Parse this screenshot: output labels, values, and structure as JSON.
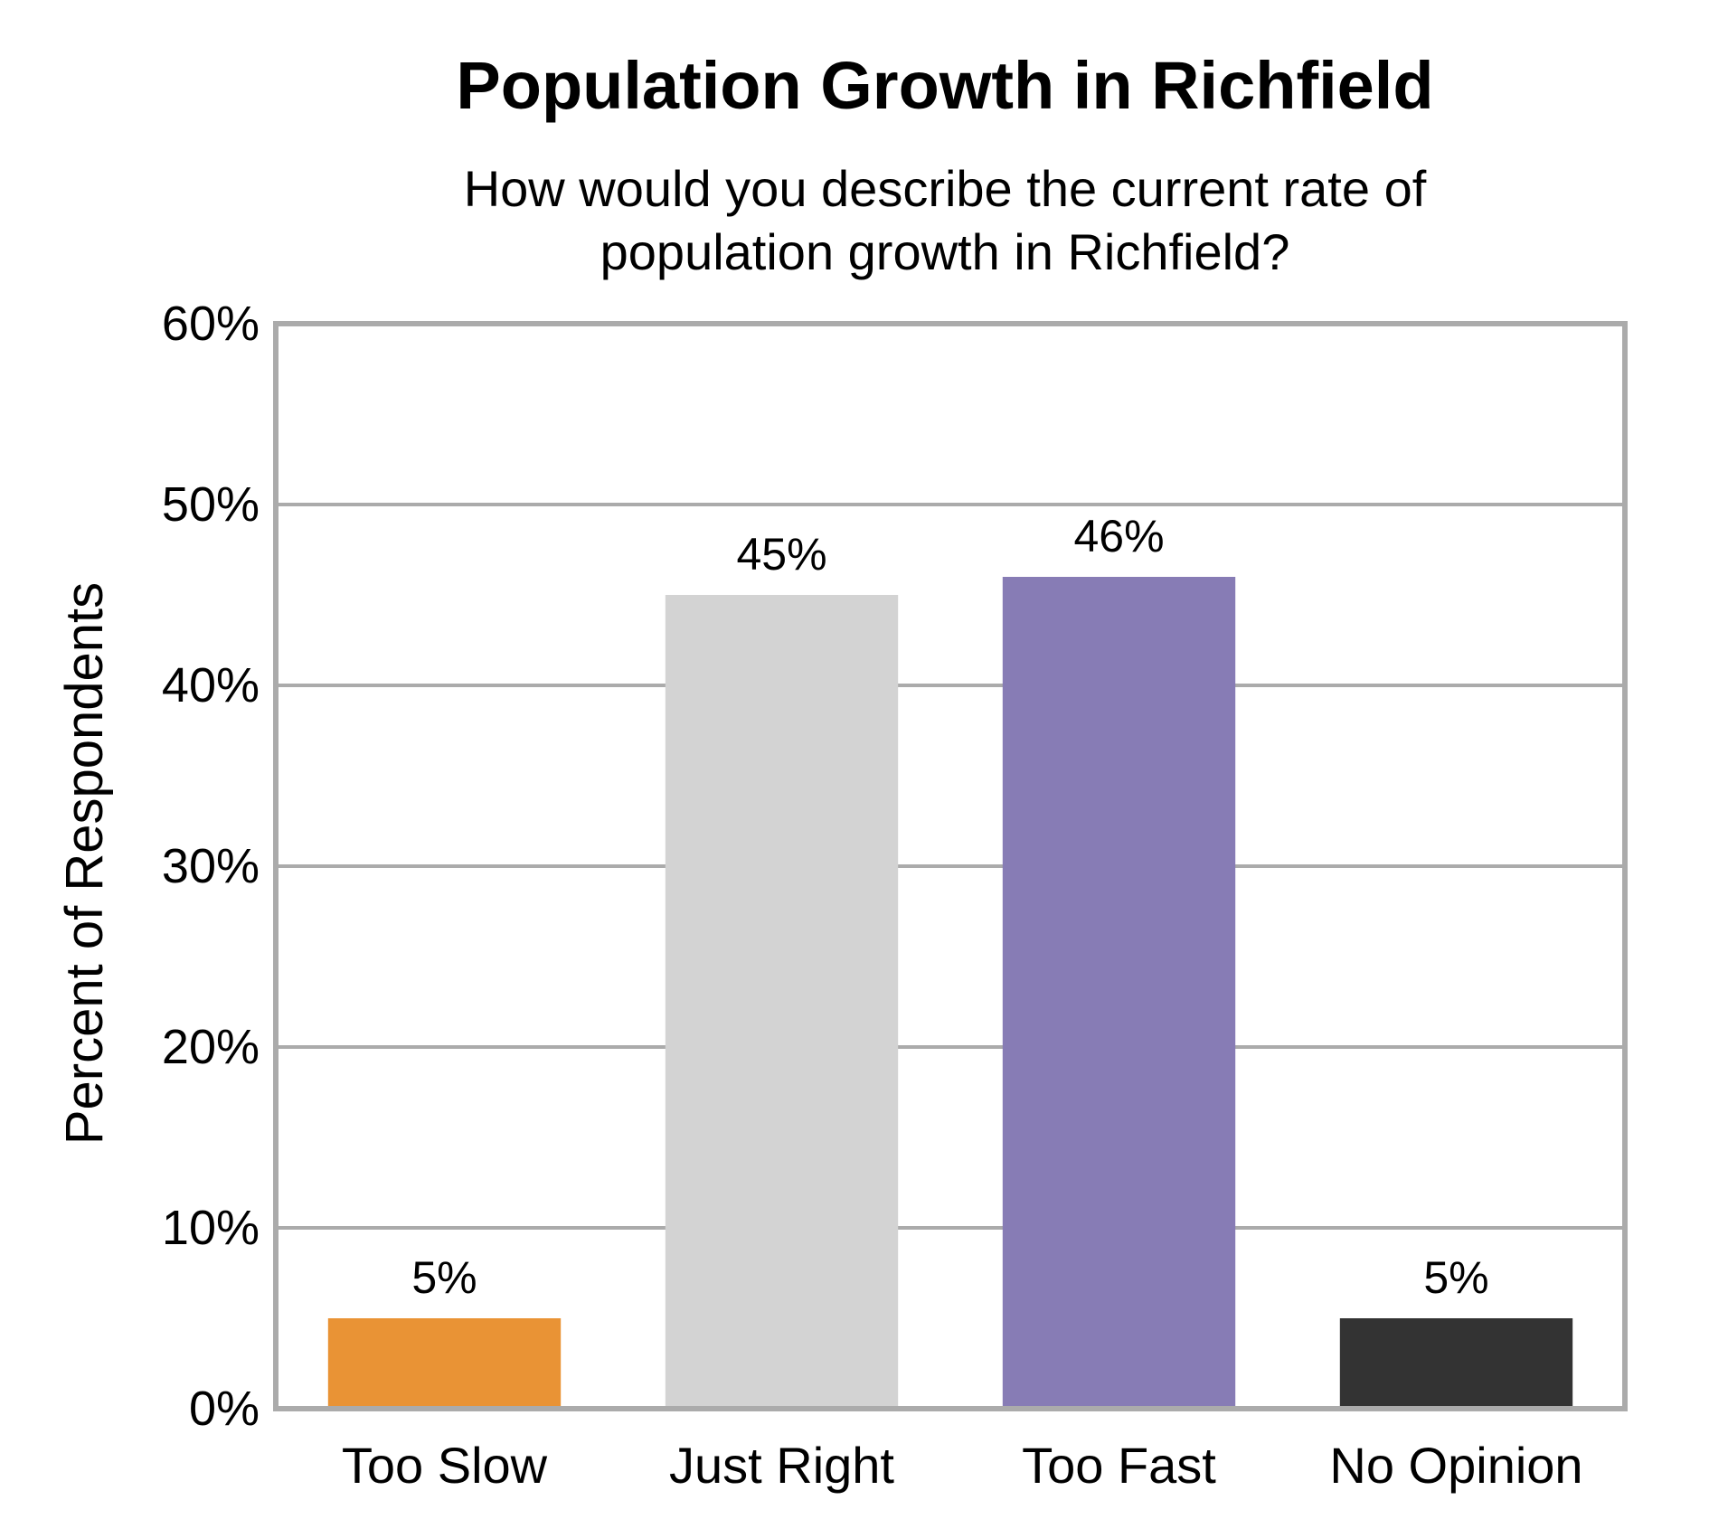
{
  "chart_data": {
    "type": "bar",
    "title": "Population Growth in Richfield",
    "subtitle_lines": [
      "How would you describe the current rate of",
      "population growth in Richfield?"
    ],
    "xlabel": "",
    "ylabel": "Percent of Respondents",
    "categories": [
      "Too Slow",
      "Just Right",
      "Too Fast",
      "No Opinion"
    ],
    "values": [
      5,
      45,
      46,
      5
    ],
    "value_labels": [
      "5%",
      "45%",
      "46%",
      "5%"
    ],
    "bar_colors": [
      "#E99335",
      "#D3D3D3",
      "#877CB5",
      "#333333"
    ],
    "ylim": [
      0,
      60
    ],
    "yticks": [
      0,
      10,
      20,
      30,
      40,
      50,
      60
    ],
    "ytick_labels": [
      "0%",
      "10%",
      "20%",
      "30%",
      "40%",
      "50%",
      "60%"
    ],
    "grid": true,
    "legend": "none",
    "frame_color": "#ABABAB",
    "grid_color": "#ABABAB"
  }
}
